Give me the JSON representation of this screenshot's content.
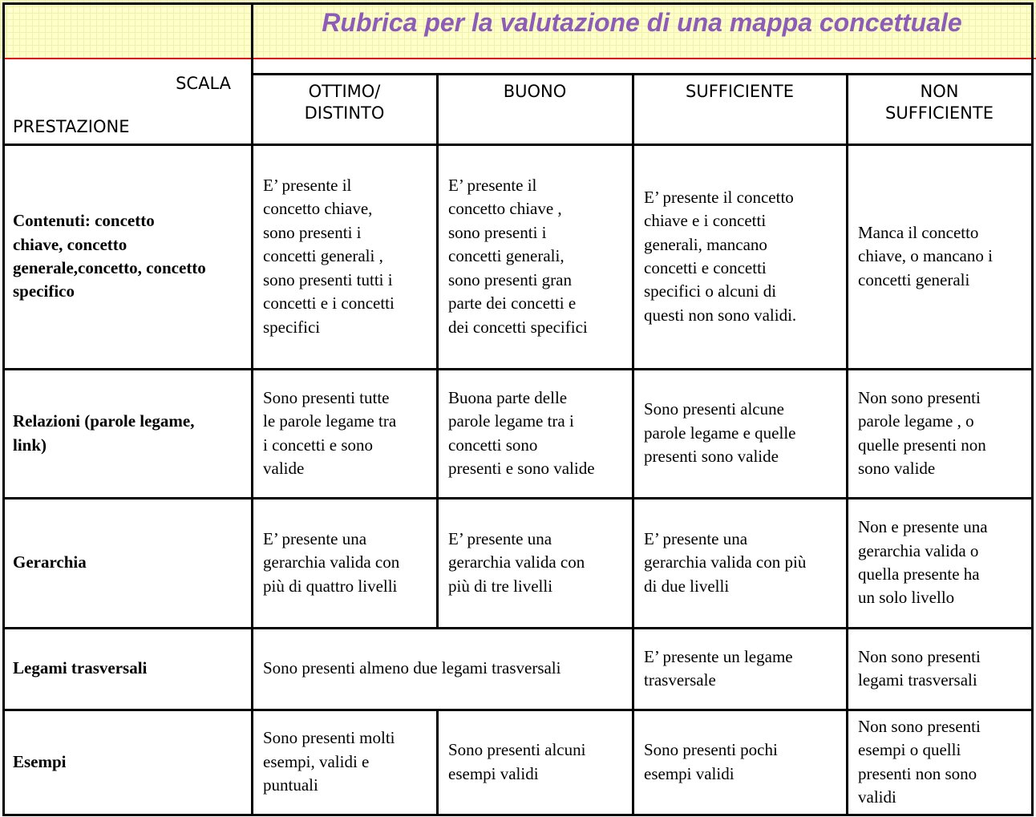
{
  "title": "Rubrica per la valutazione di una mappa concettuale",
  "corner": {
    "scala": "SCALA",
    "prestazione": "PRESTAZIONE"
  },
  "levels": [
    "OTTIMO/\nDISTINTO",
    "BUONO",
    "SUFFICIENTE",
    "NON\nSUFFICIENTE"
  ],
  "rows": [
    {
      "label": "Contenuti: concetto\nchiave, concetto\ngenerale,concetto, concetto\nspecifico",
      "cells": [
        "E’ presente il\nconcetto chiave,\nsono presenti i\nconcetti generali ,\nsono presenti tutti i\nconcetti e i concetti\nspecifici",
        "E’ presente il\nconcetto chiave ,\nsono presenti i\nconcetti generali,\nsono presenti gran\nparte dei concetti e\ndei concetti specifici",
        "E’ presente il concetto\nchiave e i concetti\ngenerali, mancano\nconcetti e concetti\nspecifici o alcuni di\nquesti non sono validi.",
        "Manca il concetto\nchiave, o mancano i\nconcetti generali"
      ]
    },
    {
      "label": "Relazioni (parole legame,\nlink)",
      "cells": [
        "Sono presenti tutte\nle parole legame tra\ni concetti e sono\nvalide",
        "Buona parte delle\nparole legame tra i\nconcetti sono\npresenti e sono valide",
        "Sono presenti alcune\nparole legame e quelle\npresenti sono valide",
        "Non sono presenti\nparole legame , o\nquelle presenti non\nsono valide"
      ]
    },
    {
      "label": "Gerarchia",
      "cells": [
        "E’ presente una\ngerarchia valida con\npiù di quattro livelli",
        "E’ presente una\ngerarchia valida con\npiù di tre livelli",
        "E’ presente una\ngerarchia valida con più\ndi due livelli",
        "Non e presente una\ngerarchia valida o\nquella presente ha\nun solo livello"
      ]
    },
    {
      "label": "Legami trasversali",
      "cells": [
        "Sono presenti almeno due legami trasversali",
        "E’ presente un legame\ntrasversale",
        "Non sono presenti\nlegami trasversali"
      ]
    },
    {
      "label": "Esempi",
      "cells": [
        "Sono presenti molti\nesempi, validi e\npuntuali",
        "Sono presenti alcuni\nesempi validi",
        "Sono presenti pochi\nesempi validi",
        "Non sono presenti\nesempi o quelli\npresenti non sono\nvalidi"
      ]
    }
  ]
}
